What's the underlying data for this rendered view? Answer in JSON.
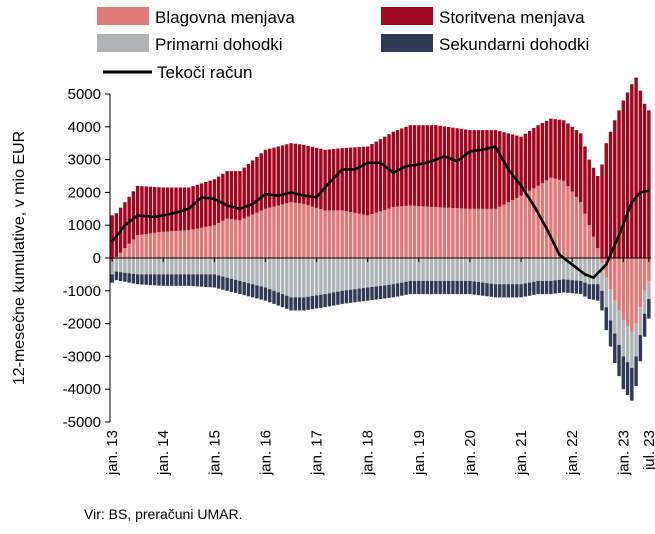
{
  "chart_data": {
    "type": "bar",
    "stacked": true,
    "ylabel": "12-mesečne kumulative, v mio EUR",
    "ylim": [
      -5000,
      5000
    ],
    "yticks": [
      5000,
      4000,
      3000,
      2000,
      1000,
      0,
      -1000,
      -2000,
      -3000,
      -4000,
      -5000
    ],
    "xtick_labels": [
      "jan. 13",
      "jan. 14",
      "jan. 15",
      "jan. 16",
      "jan. 17",
      "jan. 18",
      "jan. 19",
      "jan. 20",
      "jan. 21",
      "jan. 22",
      "jan. 23",
      "jul. 23"
    ],
    "grid": false,
    "legend_position": "top",
    "months": 127,
    "series": [
      {
        "name": "Blagovna menjava",
        "color": "#e07a78",
        "kind": "bar",
        "keypoints": [
          [
            0,
            -100
          ],
          [
            6,
            700
          ],
          [
            12,
            800
          ],
          [
            18,
            850
          ],
          [
            24,
            1000
          ],
          [
            27,
            1200
          ],
          [
            30,
            1150
          ],
          [
            36,
            1500
          ],
          [
            42,
            1700
          ],
          [
            45,
            1650
          ],
          [
            50,
            1450
          ],
          [
            54,
            1450
          ],
          [
            60,
            1300
          ],
          [
            66,
            1550
          ],
          [
            70,
            1600
          ],
          [
            76,
            1550
          ],
          [
            84,
            1500
          ],
          [
            90,
            1500
          ],
          [
            96,
            1900
          ],
          [
            100,
            2200
          ],
          [
            103,
            2450
          ],
          [
            106,
            2350
          ],
          [
            110,
            1700
          ],
          [
            112,
            1000
          ],
          [
            114,
            300
          ],
          [
            116,
            -600
          ],
          [
            118,
            -1300
          ],
          [
            120,
            -1900
          ],
          [
            122,
            -2250
          ],
          [
            123,
            -2000
          ],
          [
            125,
            -1000
          ],
          [
            126,
            -700
          ]
        ]
      },
      {
        "name": "Storitvena menjava",
        "color": "#a3071f",
        "kind": "bar",
        "keypoints": [
          [
            0,
            1300
          ],
          [
            6,
            1500
          ],
          [
            12,
            1350
          ],
          [
            18,
            1300
          ],
          [
            24,
            1400
          ],
          [
            30,
            1500
          ],
          [
            36,
            1800
          ],
          [
            42,
            1800
          ],
          [
            45,
            1800
          ],
          [
            50,
            1850
          ],
          [
            54,
            1900
          ],
          [
            60,
            2100
          ],
          [
            66,
            2300
          ],
          [
            70,
            2450
          ],
          [
            76,
            2500
          ],
          [
            84,
            2400
          ],
          [
            90,
            2400
          ],
          [
            96,
            1800
          ],
          [
            100,
            1850
          ],
          [
            103,
            1800
          ],
          [
            106,
            1850
          ],
          [
            110,
            2100
          ],
          [
            112,
            2000
          ],
          [
            114,
            2200
          ],
          [
            116,
            3500
          ],
          [
            118,
            4200
          ],
          [
            120,
            4800
          ],
          [
            122,
            5300
          ],
          [
            123,
            5500
          ],
          [
            125,
            4700
          ],
          [
            126,
            4500
          ]
        ]
      },
      {
        "name": "Primarni dohodki",
        "color": "#b0b4b7",
        "kind": "bar",
        "keypoints": [
          [
            0,
            -400
          ],
          [
            6,
            -500
          ],
          [
            12,
            -500
          ],
          [
            18,
            -500
          ],
          [
            24,
            -500
          ],
          [
            30,
            -700
          ],
          [
            36,
            -900
          ],
          [
            42,
            -1200
          ],
          [
            45,
            -1200
          ],
          [
            50,
            -1100
          ],
          [
            54,
            -1000
          ],
          [
            60,
            -900
          ],
          [
            66,
            -800
          ],
          [
            70,
            -700
          ],
          [
            76,
            -700
          ],
          [
            84,
            -700
          ],
          [
            90,
            -800
          ],
          [
            96,
            -800
          ],
          [
            100,
            -700
          ],
          [
            103,
            -700
          ],
          [
            106,
            -650
          ],
          [
            110,
            -700
          ],
          [
            112,
            -800
          ],
          [
            114,
            -800
          ],
          [
            116,
            -900
          ],
          [
            118,
            -1000
          ],
          [
            120,
            -1100
          ],
          [
            122,
            -1100
          ],
          [
            123,
            -1000
          ],
          [
            125,
            -700
          ],
          [
            126,
            -550
          ]
        ]
      },
      {
        "name": "Sekundarni dohodki",
        "color": "#2f3a55",
        "kind": "bar",
        "keypoints": [
          [
            0,
            -250
          ],
          [
            6,
            -300
          ],
          [
            12,
            -350
          ],
          [
            18,
            -350
          ],
          [
            24,
            -400
          ],
          [
            30,
            -400
          ],
          [
            36,
            -400
          ],
          [
            42,
            -400
          ],
          [
            45,
            -400
          ],
          [
            50,
            -400
          ],
          [
            54,
            -400
          ],
          [
            60,
            -400
          ],
          [
            66,
            -400
          ],
          [
            70,
            -400
          ],
          [
            76,
            -400
          ],
          [
            84,
            -400
          ],
          [
            90,
            -400
          ],
          [
            96,
            -400
          ],
          [
            100,
            -400
          ],
          [
            103,
            -400
          ],
          [
            106,
            -400
          ],
          [
            110,
            -400
          ],
          [
            112,
            -450
          ],
          [
            114,
            -500
          ],
          [
            116,
            -700
          ],
          [
            118,
            -900
          ],
          [
            120,
            -1000
          ],
          [
            122,
            -1000
          ],
          [
            123,
            -900
          ],
          [
            125,
            -700
          ],
          [
            126,
            -600
          ]
        ]
      },
      {
        "name": "Tekoči račun",
        "color": "#000000",
        "kind": "line",
        "keypoints": [
          [
            0,
            500
          ],
          [
            3,
            1000
          ],
          [
            6,
            1300
          ],
          [
            10,
            1250
          ],
          [
            14,
            1350
          ],
          [
            18,
            1500
          ],
          [
            21,
            1850
          ],
          [
            24,
            1800
          ],
          [
            27,
            1600
          ],
          [
            30,
            1500
          ],
          [
            33,
            1650
          ],
          [
            36,
            1950
          ],
          [
            39,
            1900
          ],
          [
            42,
            2000
          ],
          [
            45,
            1900
          ],
          [
            48,
            1850
          ],
          [
            51,
            2300
          ],
          [
            54,
            2700
          ],
          [
            57,
            2700
          ],
          [
            60,
            2900
          ],
          [
            63,
            2900
          ],
          [
            66,
            2600
          ],
          [
            69,
            2800
          ],
          [
            72,
            2850
          ],
          [
            75,
            2950
          ],
          [
            78,
            3100
          ],
          [
            81,
            2950
          ],
          [
            84,
            3250
          ],
          [
            87,
            3300
          ],
          [
            90,
            3400
          ],
          [
            93,
            2700
          ],
          [
            96,
            2200
          ],
          [
            99,
            1600
          ],
          [
            102,
            900
          ],
          [
            105,
            100
          ],
          [
            108,
            -200
          ],
          [
            111,
            -500
          ],
          [
            113,
            -600
          ],
          [
            116,
            -200
          ],
          [
            119,
            700
          ],
          [
            122,
            1700
          ],
          [
            124,
            2000
          ],
          [
            126,
            2050
          ]
        ]
      }
    ]
  },
  "source": "Vir: BS, preračuni UMAR."
}
